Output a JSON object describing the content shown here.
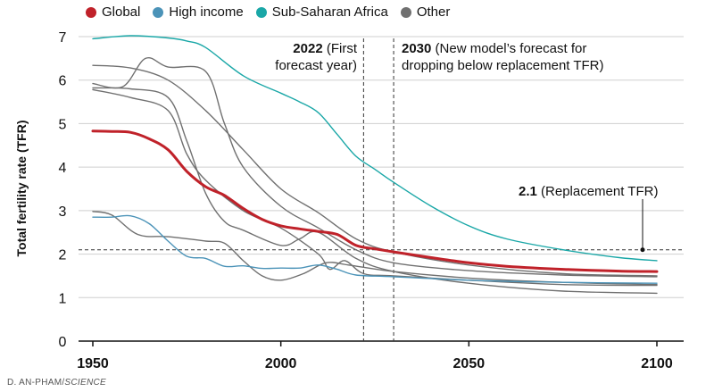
{
  "legend": [
    {
      "label": "Global",
      "color": "#c0222a"
    },
    {
      "label": "High income",
      "color": "#4b93b8"
    },
    {
      "label": "Sub-Saharan Africa",
      "color": "#1aa7a7"
    },
    {
      "label": "Other",
      "color": "#707070"
    }
  ],
  "annotations": {
    "first_forecast_year": "2022",
    "first_forecast_text": " (First",
    "first_forecast_text2": "forecast year)",
    "replacement_year": "2030",
    "replacement_text": " (New model’s forecast for",
    "replacement_text2": "dropping below replacement TFR)",
    "tfr_value": "2.1",
    "tfr_text": " (Replacement TFR)"
  },
  "credit": {
    "author": "D. AN-PHAM/",
    "publication": "SCIENCE"
  },
  "chart_data": {
    "type": "line",
    "xlabel": "",
    "ylabel": "Total fertility rate (TFR)",
    "xlim": [
      1950,
      2100
    ],
    "ylim": [
      0,
      7
    ],
    "xticks": [
      1950,
      2000,
      2050,
      2100
    ],
    "yticks": [
      0,
      1,
      2,
      3,
      4,
      5,
      6,
      7
    ],
    "reference_lines": {
      "replacement_tfr": 2.1,
      "first_forecast_year": 2022,
      "new_model_year": 2030
    },
    "series": [
      {
        "name": "Other",
        "group": "Other",
        "points": [
          [
            1950,
            6.34
          ],
          [
            1960,
            6.28
          ],
          [
            1970,
            6.0
          ],
          [
            1980,
            5.3
          ],
          [
            1990,
            4.4
          ],
          [
            2000,
            3.5
          ],
          [
            2010,
            2.95
          ],
          [
            2020,
            2.35
          ],
          [
            2030,
            2.05
          ],
          [
            2050,
            1.75
          ],
          [
            2075,
            1.55
          ],
          [
            2100,
            1.5
          ]
        ]
      },
      {
        "name": "Other",
        "group": "Other",
        "points": [
          [
            1950,
            5.92
          ],
          [
            1958,
            5.85
          ],
          [
            1964,
            6.5
          ],
          [
            1970,
            6.3
          ],
          [
            1980,
            6.2
          ],
          [
            1985,
            5.0
          ],
          [
            1990,
            4.0
          ],
          [
            2000,
            3.1
          ],
          [
            2010,
            2.6
          ],
          [
            2020,
            2.1
          ],
          [
            2030,
            1.8
          ],
          [
            2050,
            1.62
          ],
          [
            2075,
            1.52
          ],
          [
            2100,
            1.48
          ]
        ]
      },
      {
        "name": "Other",
        "group": "Other",
        "points": [
          [
            1950,
            5.82
          ],
          [
            1960,
            5.8
          ],
          [
            1970,
            5.6
          ],
          [
            1975,
            4.6
          ],
          [
            1980,
            3.4
          ],
          [
            1985,
            2.75
          ],
          [
            1990,
            2.55
          ],
          [
            2000,
            2.2
          ],
          [
            2005,
            2.35
          ],
          [
            2010,
            2.5
          ],
          [
            2020,
            1.9
          ],
          [
            2030,
            1.6
          ],
          [
            2050,
            1.33
          ],
          [
            2075,
            1.15
          ],
          [
            2100,
            1.1
          ]
        ]
      },
      {
        "name": "Other",
        "group": "Other",
        "points": [
          [
            1950,
            5.78
          ],
          [
            1960,
            5.6
          ],
          [
            1970,
            5.3
          ],
          [
            1975,
            4.3
          ],
          [
            1980,
            3.7
          ],
          [
            1990,
            3.0
          ],
          [
            2000,
            2.6
          ],
          [
            2010,
            2.0
          ],
          [
            2013,
            1.65
          ],
          [
            2017,
            1.85
          ],
          [
            2022,
            1.55
          ],
          [
            2030,
            1.5
          ],
          [
            2050,
            1.4
          ],
          [
            2075,
            1.3
          ],
          [
            2100,
            1.28
          ]
        ]
      },
      {
        "name": "Other",
        "group": "Other",
        "points": [
          [
            1950,
            2.98
          ],
          [
            1955,
            2.9
          ],
          [
            1962,
            2.45
          ],
          [
            1970,
            2.4
          ],
          [
            1980,
            2.3
          ],
          [
            1985,
            2.25
          ],
          [
            1990,
            1.85
          ],
          [
            1995,
            1.5
          ],
          [
            2000,
            1.4
          ],
          [
            2006,
            1.55
          ],
          [
            2012,
            1.8
          ],
          [
            2018,
            1.75
          ],
          [
            2030,
            1.6
          ],
          [
            2050,
            1.45
          ],
          [
            2075,
            1.35
          ],
          [
            2100,
            1.3
          ]
        ]
      },
      {
        "name": "Sub-Saharan Africa",
        "group": "Sub-Saharan Africa",
        "points": [
          [
            1950,
            6.95
          ],
          [
            1960,
            7.02
          ],
          [
            1970,
            6.97
          ],
          [
            1975,
            6.9
          ],
          [
            1980,
            6.75
          ],
          [
            1990,
            6.1
          ],
          [
            2000,
            5.7
          ],
          [
            2005,
            5.5
          ],
          [
            2010,
            5.25
          ],
          [
            2015,
            4.75
          ],
          [
            2020,
            4.25
          ],
          [
            2025,
            3.95
          ],
          [
            2030,
            3.65
          ],
          [
            2040,
            3.1
          ],
          [
            2050,
            2.65
          ],
          [
            2060,
            2.35
          ],
          [
            2075,
            2.1
          ],
          [
            2090,
            1.92
          ],
          [
            2100,
            1.85
          ]
        ]
      },
      {
        "name": "High income",
        "group": "High income",
        "points": [
          [
            1950,
            2.85
          ],
          [
            1955,
            2.85
          ],
          [
            1960,
            2.88
          ],
          [
            1965,
            2.7
          ],
          [
            1970,
            2.3
          ],
          [
            1975,
            1.95
          ],
          [
            1980,
            1.9
          ],
          [
            1985,
            1.72
          ],
          [
            1990,
            1.73
          ],
          [
            1995,
            1.67
          ],
          [
            2000,
            1.68
          ],
          [
            2005,
            1.68
          ],
          [
            2010,
            1.75
          ],
          [
            2015,
            1.65
          ],
          [
            2020,
            1.52
          ],
          [
            2030,
            1.48
          ],
          [
            2050,
            1.4
          ],
          [
            2075,
            1.35
          ],
          [
            2100,
            1.33
          ]
        ]
      },
      {
        "name": "Global",
        "group": "Global",
        "points": [
          [
            1950,
            4.83
          ],
          [
            1955,
            4.82
          ],
          [
            1960,
            4.8
          ],
          [
            1965,
            4.65
          ],
          [
            1970,
            4.4
          ],
          [
            1975,
            3.9
          ],
          [
            1980,
            3.55
          ],
          [
            1985,
            3.35
          ],
          [
            1990,
            3.05
          ],
          [
            1995,
            2.8
          ],
          [
            2000,
            2.65
          ],
          [
            2005,
            2.58
          ],
          [
            2010,
            2.52
          ],
          [
            2015,
            2.45
          ],
          [
            2020,
            2.2
          ],
          [
            2025,
            2.12
          ],
          [
            2030,
            2.05
          ],
          [
            2040,
            1.92
          ],
          [
            2050,
            1.8
          ],
          [
            2060,
            1.72
          ],
          [
            2075,
            1.65
          ],
          [
            2090,
            1.61
          ],
          [
            2100,
            1.6
          ]
        ]
      }
    ]
  }
}
